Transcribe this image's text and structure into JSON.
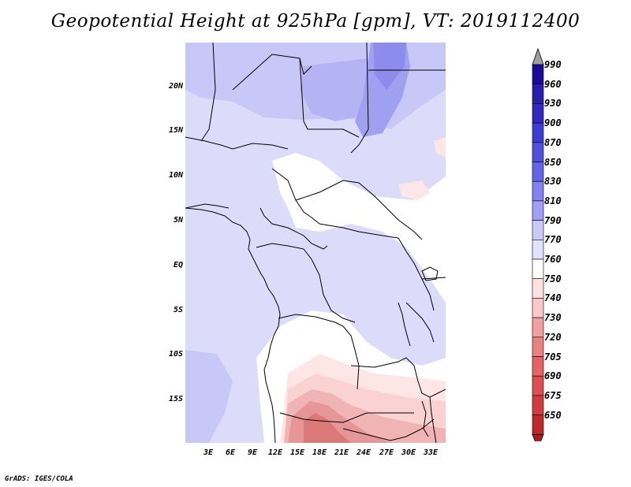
{
  "title": "Geopotential Height at 925hPa [gpm], VT: 2019112400",
  "footer": "GrADS: IGES/COLA",
  "map": {
    "lat_labels": [
      "20N",
      "15N",
      "10N",
      "5N",
      "EQ",
      "5S",
      "10S",
      "15S"
    ],
    "lon_labels": [
      "3E",
      "6E",
      "9E",
      "12E",
      "15E",
      "18E",
      "21E",
      "24E",
      "27E",
      "30E",
      "33E"
    ],
    "background_color": "#dcdcfa"
  },
  "colorbar": {
    "levels": [
      "990",
      "960",
      "930",
      "900",
      "870",
      "850",
      "830",
      "810",
      "790",
      "770",
      "760",
      "750",
      "740",
      "730",
      "720",
      "705",
      "690",
      "675",
      "650"
    ],
    "colors": [
      "#1e0a96",
      "#281eaa",
      "#3228be",
      "#3c3cd2",
      "#5050dc",
      "#6464e6",
      "#8282f0",
      "#a0a0fa",
      "#c8c8fa",
      "#e1e1ff",
      "#ffffff",
      "#ffe1e1",
      "#fac8c8",
      "#f0a0a0",
      "#e68282",
      "#e66464",
      "#dc5050",
      "#d23c3c",
      "#be2828",
      "#aa1e1e"
    ],
    "over_color": "#a0a0a0",
    "under_color": "#aa1e1e"
  }
}
